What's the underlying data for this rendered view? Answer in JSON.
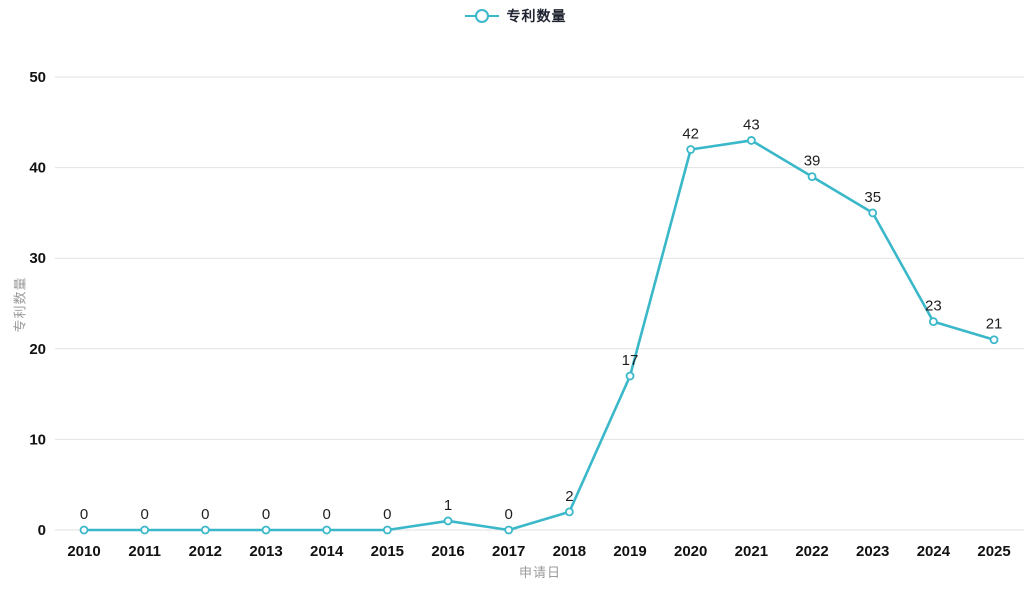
{
  "chart_data": {
    "type": "line",
    "title": "",
    "categories": [
      "2010",
      "2011",
      "2012",
      "2013",
      "2014",
      "2015",
      "2016",
      "2017",
      "2018",
      "2019",
      "2020",
      "2021",
      "2022",
      "2023",
      "2024",
      "2025"
    ],
    "series": [
      {
        "name": "专利数量",
        "values": [
          0,
          0,
          0,
          0,
          0,
          0,
          1,
          0,
          2,
          17,
          42,
          43,
          39,
          35,
          23,
          21
        ]
      }
    ],
    "xlabel": "申请日",
    "ylabel": "专利数量",
    "ylim": [
      0,
      50
    ],
    "yticks": [
      0,
      10,
      20,
      30,
      40,
      50
    ],
    "grid": "horizontal",
    "legend_position": "top-center",
    "data_labels_shown": true,
    "colors": {
      "line": "#3ab8c9",
      "marker_fill": "#ffffff",
      "grid": "#e2e2e2",
      "tick_label": "#111111",
      "data_label": "#1f1f1f",
      "axis_title": "#9b9b9b",
      "legend_text": "#1f2430",
      "background": "#ffffff"
    }
  }
}
